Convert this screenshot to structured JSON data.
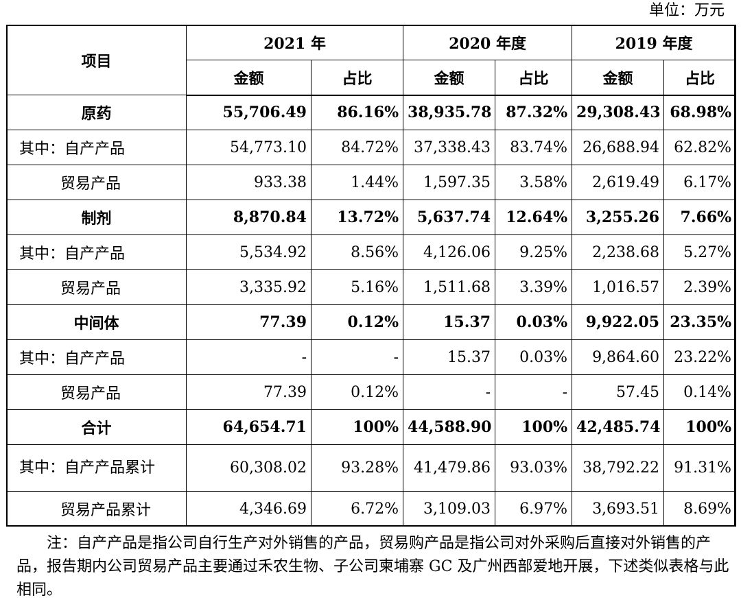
{
  "unit": "单位：万元",
  "header": {
    "item": "项目",
    "years": [
      "2021 年",
      "2020 年度",
      "2019 年度"
    ],
    "amount": "金额",
    "ratio": "占比"
  },
  "rows": [
    {
      "label": "原药",
      "style": "bold",
      "values": [
        "55,706.49",
        "86.16%",
        "38,935.78",
        "87.32%",
        "29,308.43",
        "68.98%"
      ]
    },
    {
      "label": "其中：自产产品",
      "style": "sub",
      "values": [
        "54,773.10",
        "84.72%",
        "37,338.43",
        "83.74%",
        "26,688.94",
        "62.82%"
      ]
    },
    {
      "label": "贸易产品",
      "style": "sub2",
      "values": [
        "933.38",
        "1.44%",
        "1,597.35",
        "3.58%",
        "2,619.49",
        "6.17%"
      ]
    },
    {
      "label": "制剂",
      "style": "bold",
      "values": [
        "8,870.84",
        "13.72%",
        "5,637.74",
        "12.64%",
        "3,255.26",
        "7.66%"
      ]
    },
    {
      "label": "其中：自产产品",
      "style": "sub",
      "values": [
        "5,534.92",
        "8.56%",
        "4,126.06",
        "9.25%",
        "2,238.68",
        "5.27%"
      ]
    },
    {
      "label": "贸易产品",
      "style": "sub2",
      "values": [
        "3,335.92",
        "5.16%",
        "1,511.68",
        "3.39%",
        "1,016.57",
        "2.39%"
      ]
    },
    {
      "label": "中间体",
      "style": "bold",
      "values": [
        "77.39",
        "0.12%",
        "15.37",
        "0.03%",
        "9,922.05",
        "23.35%"
      ]
    },
    {
      "label": "其中：自产产品",
      "style": "sub",
      "values": [
        "-",
        "-",
        "15.37",
        "0.03%",
        "9,864.60",
        "23.22%"
      ]
    },
    {
      "label": "贸易产品",
      "style": "sub2",
      "values": [
        "77.39",
        "0.12%",
        "-",
        "-",
        "57.45",
        "0.14%"
      ]
    },
    {
      "label": "合计",
      "style": "bold",
      "values": [
        "64,654.71",
        "100%",
        "44,588.90",
        "100%",
        "42,485.74",
        "100%"
      ]
    },
    {
      "label": "其中：自产产品累计",
      "style": "wrap",
      "values": [
        "60,308.02",
        "93.28%",
        "41,479.86",
        "93.03%",
        "38,792.22",
        "91.31%"
      ]
    },
    {
      "label": "贸易产品累计",
      "style": "sub2b",
      "values": [
        "4,346.69",
        "6.72%",
        "3,109.03",
        "6.97%",
        "3,693.51",
        "8.69%"
      ]
    }
  ],
  "note": "注：自产产品是指公司自行生产对外销售的产品，贸易购产品是指公司对外采购后直接对外销售的产品，报告期内公司贸易产品主要通过禾农生物、子公司柬埔寨 GC 及广州西部爱地开展，下述类似表格与此相同。"
}
